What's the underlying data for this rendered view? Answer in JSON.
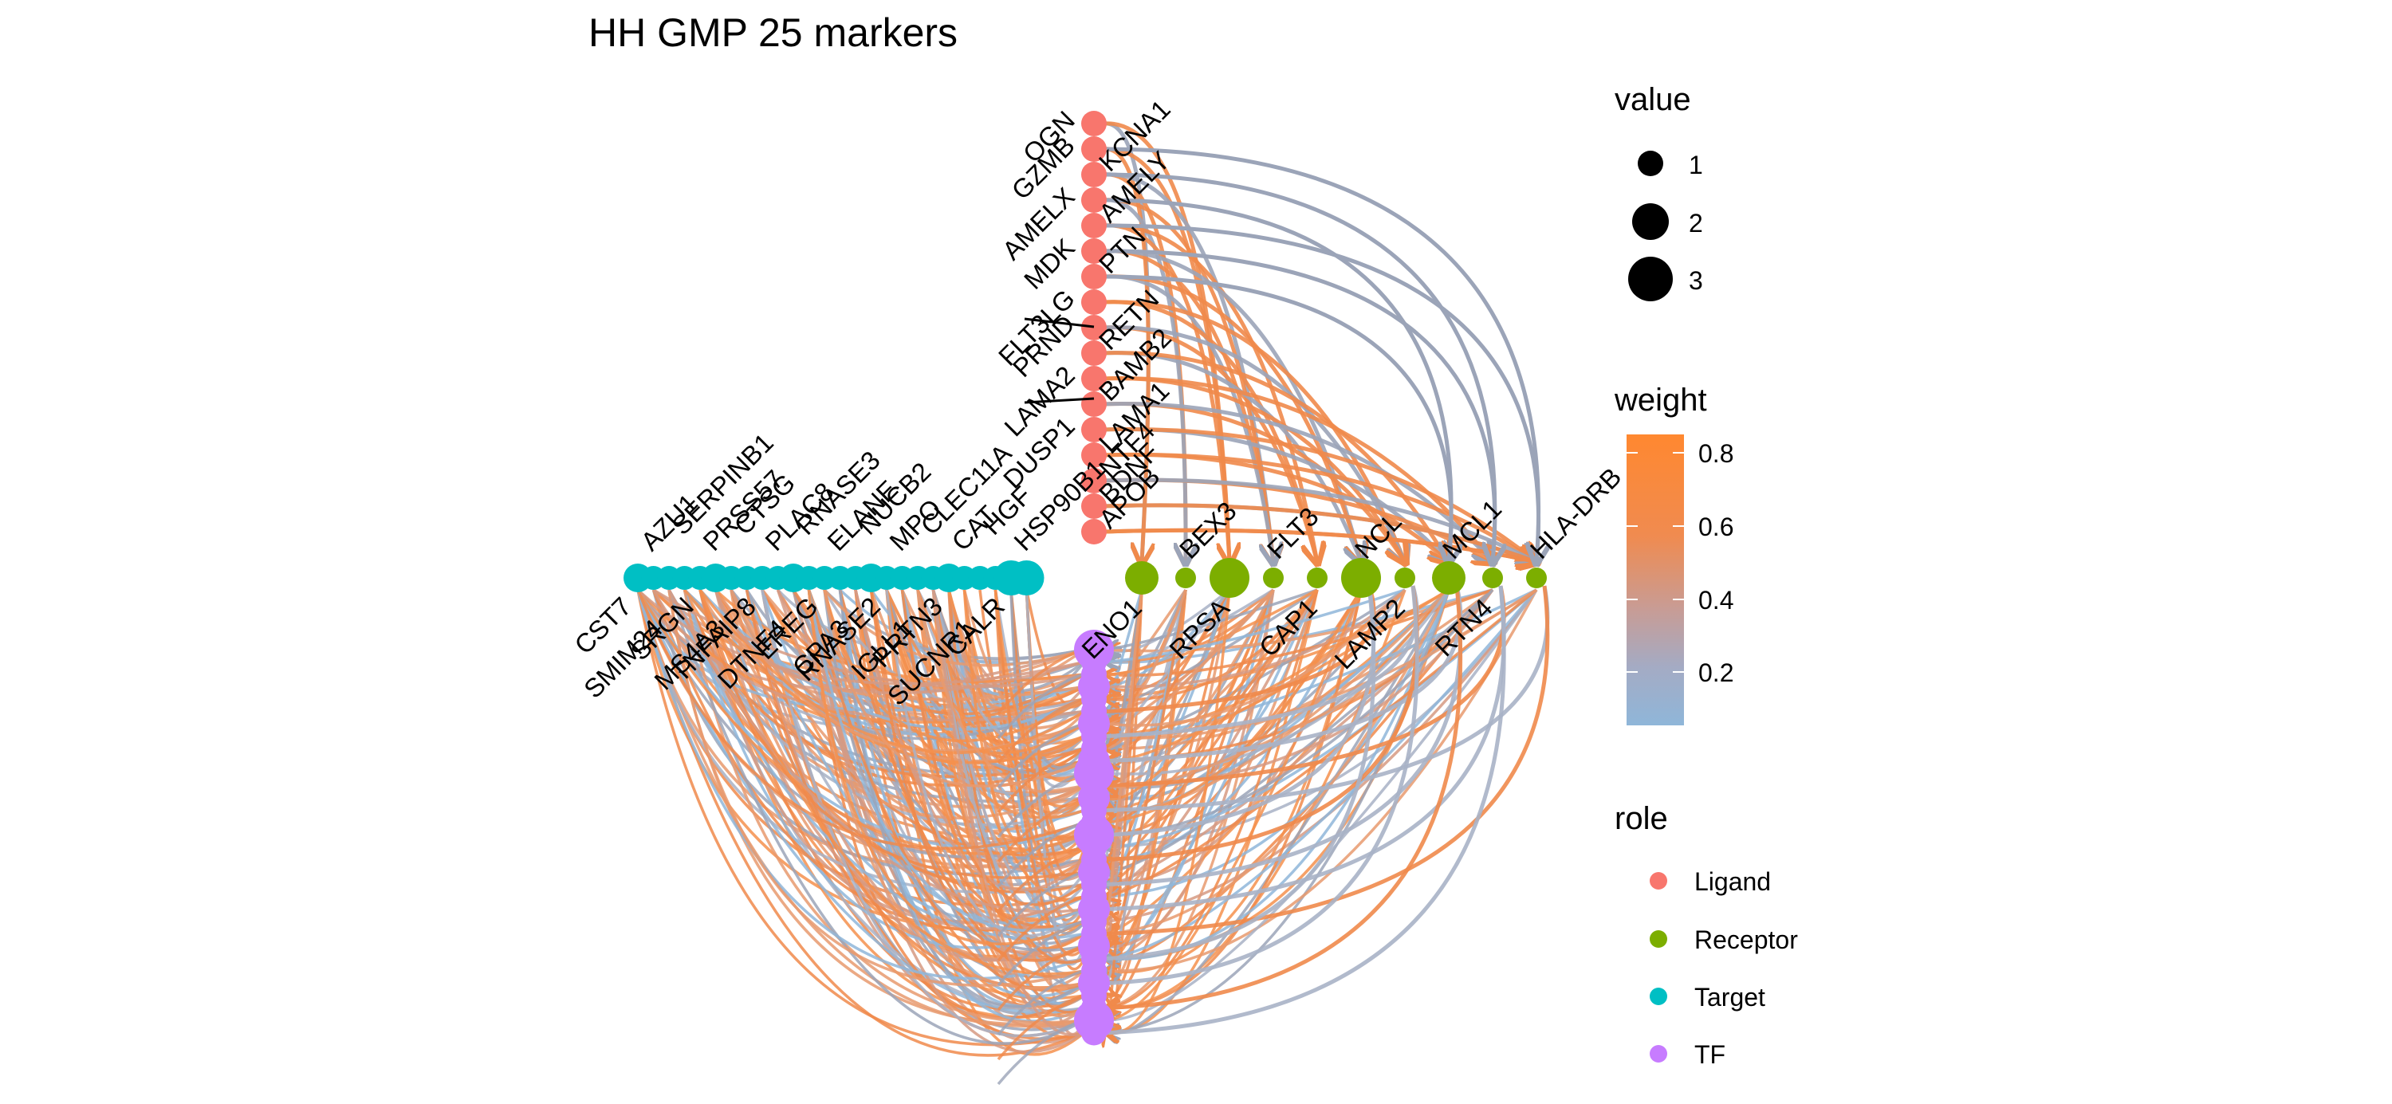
{
  "title": "HH GMP 25 markers",
  "roles": [
    {
      "name": "Ligand",
      "color": "#F8766D"
    },
    {
      "name": "Receptor",
      "color": "#7CAE00"
    },
    {
      "name": "Target",
      "color": "#00BFC4"
    },
    {
      "name": "TF",
      "color": "#C77CFF"
    }
  ],
  "ligands": [
    "OGN",
    "GZMB",
    "KCNA1",
    "AMELX",
    "AMELY",
    "MDK",
    "PTN",
    "FLT3LG",
    "PRND",
    "RETN",
    "LAMA2",
    "BAMB2",
    "DUSP1",
    "LAMA1",
    "NTF4",
    "BDNF",
    "APOB"
  ],
  "receptors": [
    "ENO1",
    "BEX3",
    "RPSA",
    "FLT3",
    "CAP1",
    "NCL",
    "LAMP2",
    "MCL1",
    "RTN4",
    "HLA-DRB"
  ],
  "receptor_sizes": [
    2,
    1,
    3,
    1,
    1,
    3,
    1,
    2,
    1,
    1
  ],
  "targets": [
    "CST7",
    "AZU1",
    "SMIM24",
    "SERPINB1",
    "SRGN",
    "PRSS57",
    "MS4A3",
    "CTSG",
    "TNFAIP8",
    "PLAC8",
    "DTNF4",
    "RNASE3",
    "EREG",
    "ELANE",
    "CPA3",
    "NUCB2",
    "RNASE2",
    "MPO",
    "IGLL1",
    "CLEC11A",
    "PRTN3",
    "CAT",
    "SUCNR1",
    "HGF",
    "CALR",
    "HSP90B1"
  ],
  "tf_count": 32,
  "legend": {
    "value_title": "value",
    "value_items": [
      "1",
      "2",
      "3"
    ],
    "weight_title": "weight",
    "weight_ticks": [
      "0.8",
      "0.6",
      "0.4",
      "0.2"
    ],
    "weight_colors": [
      "#FF8830",
      "#F48A47",
      "#D8957A",
      "#A6A9C0",
      "#8FB6D9"
    ],
    "role_title": "role"
  }
}
